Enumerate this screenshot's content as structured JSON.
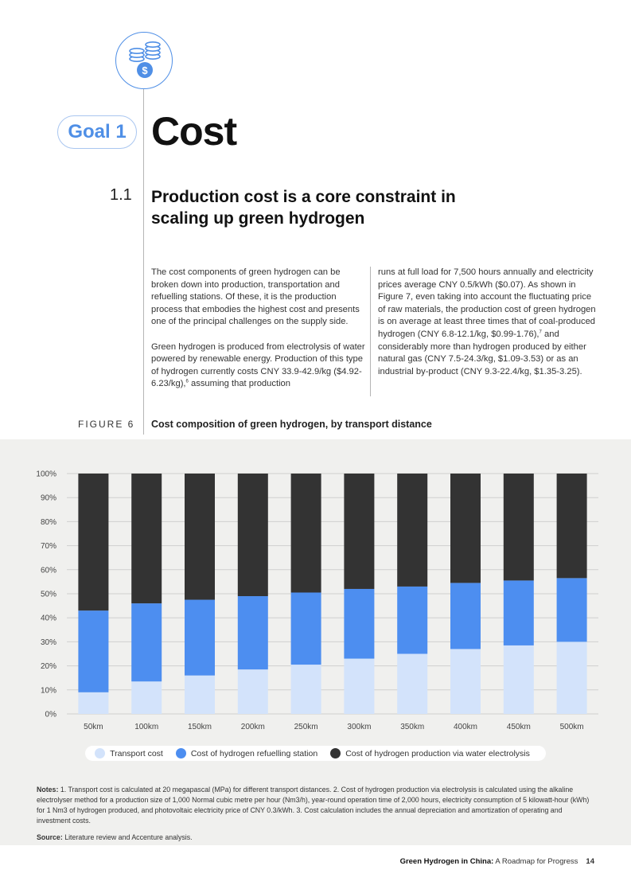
{
  "goal": {
    "label": "Goal 1",
    "title": "Cost"
  },
  "section": {
    "number": "1.1",
    "title": "Production cost is a core constraint in scaling up green hydrogen"
  },
  "body": {
    "col1_p1": "The cost components of green hydrogen can be broken down into production, transportation and refuelling stations. Of these, it is the production process that embodies the highest cost and presents one of the principal challenges on the supply side.",
    "col1_p2": "Green hydrogen is produced from electrolysis of water powered by renewable energy. Production of this type of hydrogen currently costs CNY 33.9-42.9/kg ($4.92-6.23/kg),",
    "col1_p2_ref": "6",
    "col1_p2_end": " assuming that production",
    "col2_a": "runs at full load for 7,500 hours annually and electricity prices average CNY 0.5/kWh ($0.07). As shown in Figure 7, even taking into account the fluctuating price of raw materials, the production cost of green hydrogen is on average at least three times that of coal-produced hydrogen (CNY 6.8-12.1/kg, $0.99-1.76),",
    "col2_ref": "7",
    "col2_b": " and considerably more than hydrogen produced by either natural gas (CNY 7.5-24.3/kg, $1.09-3.53) or as an industrial by-product (CNY 9.3-22.4/kg, $1.35-3.25)."
  },
  "figure": {
    "label": "FIGURE 6",
    "title": "Cost composition of green hydrogen, by transport distance"
  },
  "chart_data": {
    "type": "bar",
    "stacked": true,
    "categories": [
      "50km",
      "100km",
      "150km",
      "200km",
      "250km",
      "300km",
      "350km",
      "400km",
      "450km",
      "500km"
    ],
    "series": [
      {
        "name": "Transport cost",
        "color": "#d3e3fb",
        "values": [
          9,
          13.5,
          16,
          18.5,
          20.5,
          23,
          25,
          27,
          28.5,
          30
        ]
      },
      {
        "name": "Cost of hydrogen refuelling station",
        "color": "#4d8ef0",
        "values": [
          34,
          32.5,
          31.5,
          30.5,
          30,
          29,
          28,
          27.5,
          27,
          26.5
        ]
      },
      {
        "name": "Cost of hydrogen production via water electrolysis",
        "color": "#333333",
        "values": [
          57,
          54,
          52.5,
          51,
          49.5,
          48,
          47,
          45.5,
          44.5,
          43.5
        ]
      }
    ],
    "yticks": [
      "0%",
      "10%",
      "20%",
      "30%",
      "40%",
      "50%",
      "60%",
      "70%",
      "80%",
      "90%",
      "100%"
    ],
    "ylim": [
      0,
      100
    ],
    "grid": true,
    "legend": "bottom"
  },
  "notes": {
    "label": "Notes:",
    "text": " 1. Transport cost is calculated at 20 megapascal (MPa) for different transport distances. 2. Cost of hydrogen production via electrolysis is calculated using the alkaline electrolyser method for a production size of 1,000 Normal cubic metre per hour (Nm3/h), year-round operation time of 2,000 hours, electricity consumption of 5 kilowatt-hour (kWh) for 1 Nm3 of hydrogen produced, and photovoltaic electricity price of CNY 0.3/kWh. 3. Cost calculation includes the annual depreciation and amortization of operating and investment costs."
  },
  "source": {
    "label": "Source:",
    "text": " Literature review and Accenture analysis."
  },
  "footer": {
    "title_bold": "Green Hydrogen in China:",
    "title_rest": " A Roadmap for Progress",
    "page": "14"
  },
  "icons": {
    "header_icon": "coins-dollar-icon"
  }
}
